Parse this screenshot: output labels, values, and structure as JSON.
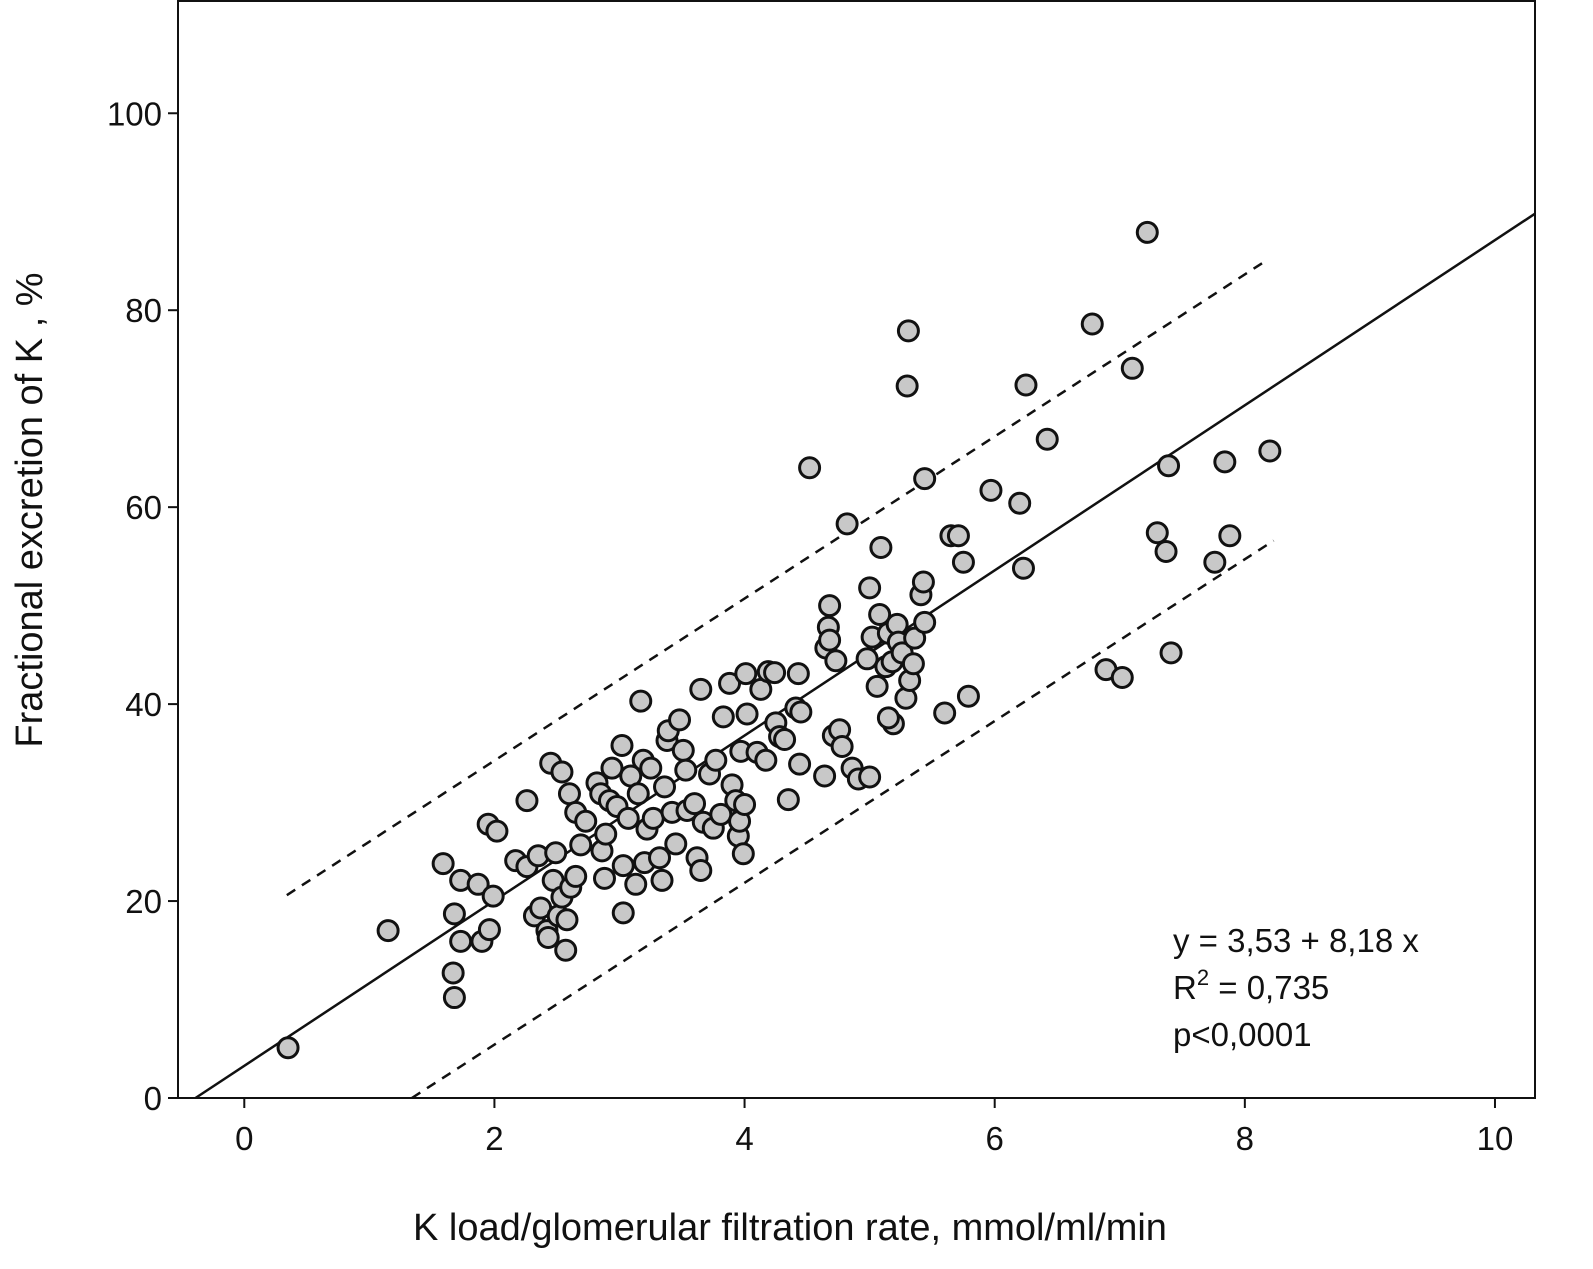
{
  "chart_data": {
    "type": "scatter",
    "x_label": "K load/glomerular filtration rate,  mmol/ml/min",
    "y_label": "Fractional excretion of K , %",
    "xlim": [
      -0.53,
      10.32
    ],
    "ylim": [
      0,
      111.4
    ],
    "xticks": [
      0,
      2,
      4,
      6,
      8,
      10
    ],
    "yticks": [
      0,
      20,
      40,
      60,
      80,
      100
    ],
    "grid": false,
    "color": "#c8c8c8",
    "x": [
      0.35,
      1.15,
      1.59,
      1.68,
      1.67,
      1.68,
      1.73,
      1.73,
      1.87,
      1.9,
      1.95,
      1.96,
      1.99,
      2.02,
      2.26,
      2.17,
      2.26,
      2.35,
      2.32,
      2.37,
      2.42,
      2.43,
      2.45,
      2.49,
      2.47,
      2.51,
      2.57,
      2.54,
      2.6,
      2.58,
      2.54,
      2.61,
      2.65,
      2.65,
      2.69,
      2.73,
      2.82,
      2.85,
      2.86,
      2.89,
      2.88,
      2.92,
      2.94,
      2.98,
      3.02,
      3.03,
      3.03,
      3.07,
      3.09,
      3.13,
      3.15,
      3.17,
      3.19,
      3.2,
      3.22,
      3.25,
      3.27,
      3.32,
      3.34,
      3.36,
      3.38,
      3.39,
      3.42,
      3.45,
      3.48,
      3.51,
      3.53,
      3.54,
      3.6,
      3.62,
      3.65,
      3.65,
      3.67,
      3.72,
      3.75,
      3.77,
      3.81,
      3.83,
      3.88,
      3.9,
      3.93,
      3.95,
      3.96,
      3.97,
      3.99,
      4.0,
      4.01,
      4.02,
      4.13,
      4.1,
      4.17,
      4.19,
      4.24,
      4.25,
      4.28,
      4.32,
      4.35,
      4.41,
      4.44,
      4.43,
      4.45,
      4.52,
      4.64,
      4.65,
      4.68,
      4.67,
      4.68,
      4.71,
      4.73,
      4.76,
      4.78,
      4.82,
      4.86,
      4.91,
      4.98,
      5.0,
      5.0,
      5.02,
      5.06,
      5.09,
      5.08,
      5.13,
      5.15,
      5.18,
      5.19,
      5.15,
      5.22,
      5.23,
      5.26,
      5.29,
      5.3,
      5.31,
      5.32,
      5.35,
      5.36,
      5.41,
      5.43,
      5.44,
      5.44,
      5.6,
      5.65,
      5.71,
      5.75,
      5.79,
      5.97,
      6.2,
      6.23,
      6.25,
      6.42,
      6.78,
      6.89,
      7.02,
      7.1,
      7.22,
      7.3,
      7.37,
      7.39,
      7.41,
      7.76,
      7.84,
      7.88,
      8.2
    ],
    "values": [
      5.1,
      17.0,
      23.8,
      18.7,
      12.7,
      10.2,
      22.1,
      15.9,
      21.7,
      15.9,
      27.8,
      17.1,
      20.5,
      27.1,
      30.2,
      24.1,
      23.5,
      24.6,
      18.5,
      19.3,
      17.0,
      16.3,
      34.0,
      24.9,
      22.1,
      18.5,
      15.0,
      33.1,
      30.9,
      18.1,
      20.4,
      21.4,
      22.5,
      29.0,
      25.7,
      28.1,
      32.0,
      30.9,
      25.1,
      26.8,
      22.3,
      30.2,
      33.5,
      29.6,
      35.8,
      18.8,
      23.6,
      28.4,
      32.7,
      21.7,
      30.9,
      40.3,
      34.3,
      23.9,
      27.3,
      33.5,
      28.4,
      24.4,
      22.1,
      31.6,
      36.3,
      37.3,
      29.0,
      25.8,
      38.4,
      35.3,
      33.3,
      29.2,
      29.9,
      24.4,
      41.5,
      23.1,
      28.0,
      32.9,
      27.4,
      34.3,
      28.8,
      38.7,
      42.1,
      31.8,
      30.2,
      26.6,
      28.1,
      35.2,
      24.8,
      29.8,
      43.1,
      39.0,
      41.5,
      35.1,
      34.3,
      43.3,
      43.2,
      38.1,
      36.7,
      36.4,
      30.3,
      39.6,
      33.9,
      43.1,
      39.2,
      64.0,
      32.7,
      45.7,
      50.0,
      47.8,
      46.5,
      36.8,
      44.4,
      37.4,
      35.7,
      58.3,
      33.5,
      32.4,
      44.6,
      32.6,
      51.8,
      46.8,
      41.8,
      55.9,
      49.1,
      43.8,
      47.2,
      44.3,
      38.0,
      38.6,
      48.1,
      46.3,
      45.2,
      40.6,
      72.3,
      77.9,
      42.4,
      44.1,
      46.7,
      51.1,
      52.4,
      62.9,
      48.3,
      39.1,
      57.1,
      57.1,
      54.4,
      40.8,
      61.7,
      60.4,
      53.8,
      72.4,
      66.9,
      78.6,
      43.5,
      42.7,
      74.1,
      87.9,
      57.4,
      55.5,
      64.2,
      45.2,
      54.4,
      64.6,
      57.1,
      65.7
    ],
    "lines": [
      {
        "style": "solid",
        "x": [
          -0.39,
          10.32
        ],
        "y": [
          0,
          89.8
        ]
      },
      {
        "style": "dashed",
        "x": [
          0.34,
          8.19
        ],
        "y": [
          20.6,
          85.2
        ]
      },
      {
        "style": "dashed",
        "x": [
          1.34,
          8.23
        ],
        "y": [
          0,
          56.6
        ]
      }
    ],
    "annotations": [
      "y = 3,53 + 8,18 x",
      {
        "base": "R",
        "superscript": "2",
        "text": " = 0,735"
      },
      "p<0,0001"
    ]
  }
}
